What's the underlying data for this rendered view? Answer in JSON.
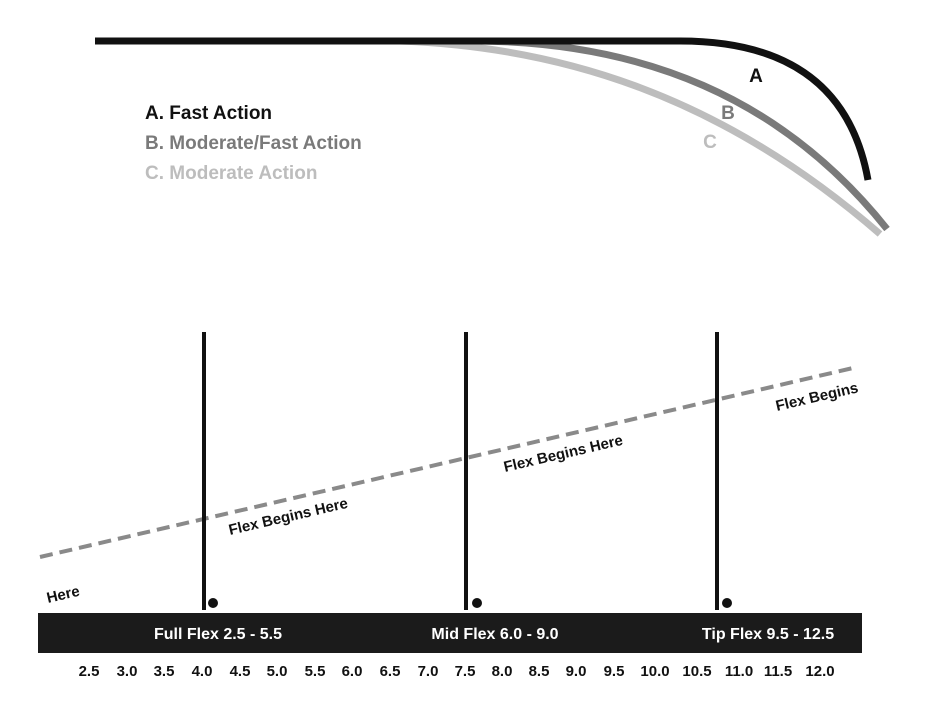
{
  "colors": {
    "a": "#111111",
    "b": "#7a7a7a",
    "c": "#bdbdbd",
    "band": "#1b1b1b",
    "dash": "#8a8a8a"
  },
  "curves": [
    {
      "key": "a",
      "letter": "A",
      "legend": "A. Fast Action"
    },
    {
      "key": "b",
      "letter": "B",
      "legend": "B. Moderate/Fast Action"
    },
    {
      "key": "c",
      "letter": "C",
      "legend": "C. Moderate Action"
    }
  ],
  "flex_line": {
    "labels": [
      "Flex Begins Here",
      "Flex Begins Here",
      "Flex Begins",
      "Here"
    ]
  },
  "flex_zones": [
    {
      "label": "Full Flex 2.5 - 5.5"
    },
    {
      "label": "Mid Flex 6.0 - 9.0"
    },
    {
      "label": "Tip Flex 9.5 - 12.5"
    }
  ],
  "scale": [
    "2.5",
    "3.0",
    "3.5",
    "4.0",
    "4.5",
    "5.0",
    "5.5",
    "6.0",
    "6.5",
    "7.0",
    "7.5",
    "8.0",
    "8.5",
    "9.0",
    "9.5",
    "10.0",
    "10.5",
    "11.0",
    "11.5",
    "12.0"
  ]
}
